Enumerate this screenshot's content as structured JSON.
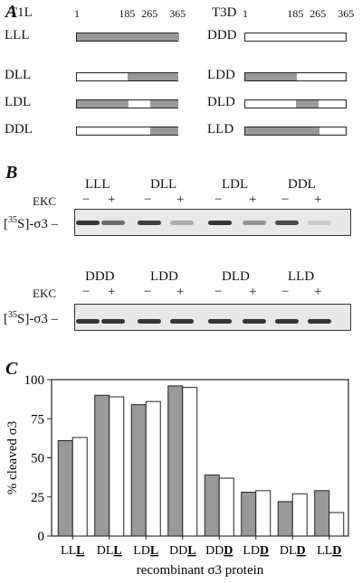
{
  "panel_a": {
    "letter": "A",
    "groups": [
      {
        "strain": "T1L",
        "ticks": [
          "1",
          "185",
          "265",
          "365"
        ],
        "rows": [
          {
            "label": "LLL",
            "gray": [
              [
                1,
                365
              ]
            ]
          },
          {
            "label": "DLL",
            "gray": [
              [
                185,
                365
              ]
            ]
          },
          {
            "label": "LDL",
            "gray": [
              [
                1,
                185
              ],
              [
                265,
                365
              ]
            ]
          },
          {
            "label": "DDL",
            "gray": [
              [
                265,
                365
              ]
            ]
          }
        ]
      },
      {
        "strain": "T3D",
        "ticks": [
          "1",
          "185",
          "265",
          "365"
        ],
        "rows": [
          {
            "label": "DDD",
            "gray": []
          },
          {
            "label": "LDD",
            "gray": [
              [
                1,
                185
              ]
            ]
          },
          {
            "label": "DLD",
            "gray": [
              [
                185,
                265
              ]
            ]
          },
          {
            "label": "LLD",
            "gray": [
              [
                1,
                265
              ]
            ]
          }
        ]
      }
    ]
  },
  "panel_b": {
    "letter": "B",
    "ekc_label": "EKC",
    "minus": "−",
    "plus": "+",
    "marker": "[35S]-σ3",
    "gels": [
      {
        "labels": [
          "LLL",
          "DLL",
          "LDL",
          "DDL"
        ],
        "band_intensity": [
          0.85,
          0.6,
          0.8,
          0.3,
          0.85,
          0.4,
          0.75,
          0.15
        ]
      },
      {
        "labels": [
          "DDD",
          "LDD",
          "DLD",
          "LLD"
        ],
        "band_intensity": [
          0.85,
          0.85,
          0.85,
          0.85,
          0.85,
          0.85,
          0.85,
          0.85
        ]
      }
    ]
  },
  "panel_c": {
    "letter": "C",
    "chart_data": {
      "type": "bar",
      "categories": [
        "LLL",
        "DLL",
        "LDL",
        "DDL",
        "DDD",
        "LDD",
        "DLD",
        "LLD"
      ],
      "underlined_suffix": [
        "L",
        "L",
        "L",
        "L",
        "D",
        "D",
        "D",
        "D"
      ],
      "series": [
        {
          "color": "#999999",
          "values": [
            61,
            90,
            84,
            96,
            39,
            28,
            22,
            29
          ]
        },
        {
          "color": "#ffffff",
          "values": [
            63,
            89,
            86,
            95,
            37,
            29,
            27,
            15
          ]
        }
      ],
      "ylabel": "% cleaved σ3",
      "xlabel": "recombinant σ3 protein",
      "ylim": [
        0,
        100
      ],
      "yticks": [
        0,
        25,
        50,
        75,
        100
      ]
    }
  }
}
